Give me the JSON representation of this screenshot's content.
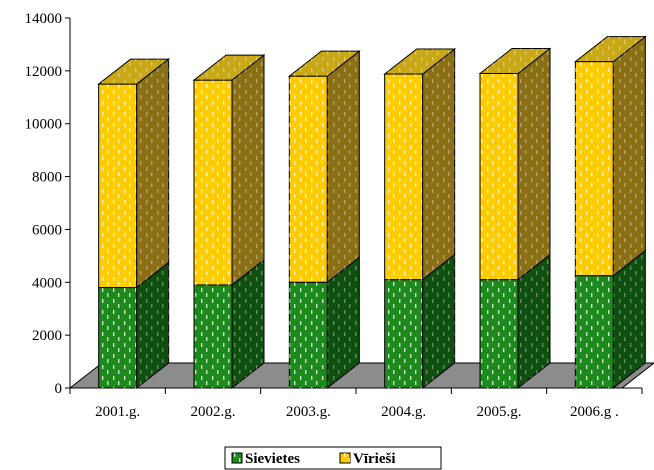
{
  "chart_data": {
    "type": "bar",
    "stacked": true,
    "three_d": true,
    "categories": [
      "2001.g.",
      "2002.g.",
      "2003.g.",
      "2004.g.",
      "2005.g.",
      "2006.g ."
    ],
    "series": [
      {
        "name": "Sievietes",
        "values": [
          3800,
          3900,
          4000,
          4100,
          4100,
          4250
        ],
        "color": "#1E8A1E",
        "side_color": "#0F4F0F"
      },
      {
        "name": "Vīrieši",
        "values": [
          7700,
          7750,
          7800,
          7780,
          7800,
          8100
        ],
        "color": "#FFCC00",
        "side_color": "#8A6F14"
      }
    ],
    "yticks": [
      "0",
      "2000",
      "4000",
      "6000",
      "8000",
      "10000",
      "12000",
      "14000"
    ],
    "ylim": [
      0,
      14000
    ],
    "title": "",
    "xlabel": "",
    "ylabel": "",
    "legend_position": "bottom",
    "floor_color": "#8C8C8C"
  }
}
